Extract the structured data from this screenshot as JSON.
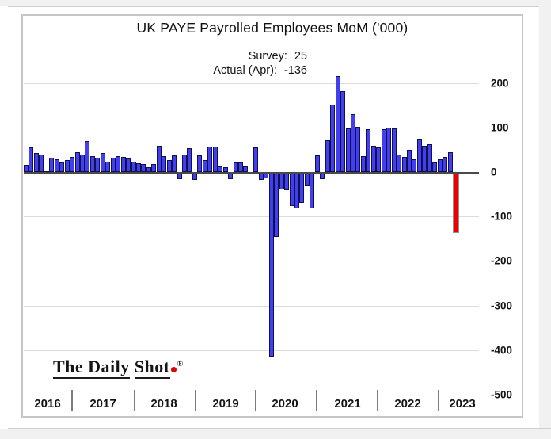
{
  "title": "UK PAYE Payrolled Employees MoM ('000)",
  "annotation": {
    "survey_label": "Survey:",
    "survey_value": "25",
    "actual_label": "Actual (Apr):",
    "actual_value": "-136"
  },
  "logo": {
    "part1": "The Daily",
    "part2": "Shot",
    "reg": "®"
  },
  "chart_data": {
    "type": "bar",
    "title": "UK PAYE Payrolled Employees MoM ('000)",
    "unit": "thousands of employees, month-over-month change",
    "x_start": "2016-04",
    "x_end": "2023-04",
    "ylim": [
      -500,
      250
    ],
    "y_ticks": [
      200,
      100,
      0,
      -100,
      -200,
      -300,
      -400,
      -500
    ],
    "grid": "horizontal",
    "legend": "none",
    "year_labels": [
      "2016",
      "2017",
      "2018",
      "2019",
      "2020",
      "2021",
      "2022",
      "2023"
    ],
    "series": [
      {
        "year": 2016,
        "start_month": "Apr",
        "values": [
          16,
          56,
          43,
          40,
          2,
          32,
          29,
          22,
          26
        ]
      },
      {
        "year": 2017,
        "start_month": "Jan",
        "values": [
          33,
          44,
          40,
          69,
          36,
          32,
          42,
          24,
          32,
          35,
          34,
          30
        ]
      },
      {
        "year": 2018,
        "start_month": "Jan",
        "values": [
          23,
          20,
          17,
          10,
          18,
          59,
          36,
          26,
          38,
          -15,
          39,
          53
        ]
      },
      {
        "year": 2019,
        "start_month": "Jan",
        "values": [
          -16,
          37,
          27,
          57,
          57,
          12,
          10,
          -14,
          22,
          22,
          12,
          -3
        ]
      },
      {
        "year": 2020,
        "start_month": "Jan",
        "values": [
          56,
          -16,
          -12,
          -412,
          -145,
          -37,
          -40,
          -74,
          -80,
          -68,
          -30,
          -80
        ]
      },
      {
        "year": 2021,
        "start_month": "Jan",
        "values": [
          38,
          -15,
          71,
          151,
          215,
          181,
          98,
          130,
          102,
          36,
          96,
          59
        ]
      },
      {
        "year": 2022,
        "start_month": "Jan",
        "values": [
          56,
          96,
          100,
          98,
          40,
          33,
          49,
          28,
          73,
          59,
          63,
          21
        ]
      },
      {
        "year": 2023,
        "start_month": "Jan",
        "values": [
          28,
          33,
          44,
          -136
        ]
      }
    ],
    "highlight_last_bar": {
      "label": "Actual (Apr)",
      "value": -136,
      "color": "#ec0000"
    },
    "colors": {
      "bar_fill": "#423ff0",
      "bar_border": "#10104a",
      "highlight_fill": "#ec0000",
      "gridline": "#dcdcdc",
      "zero_line": "#4a4a4a"
    }
  }
}
